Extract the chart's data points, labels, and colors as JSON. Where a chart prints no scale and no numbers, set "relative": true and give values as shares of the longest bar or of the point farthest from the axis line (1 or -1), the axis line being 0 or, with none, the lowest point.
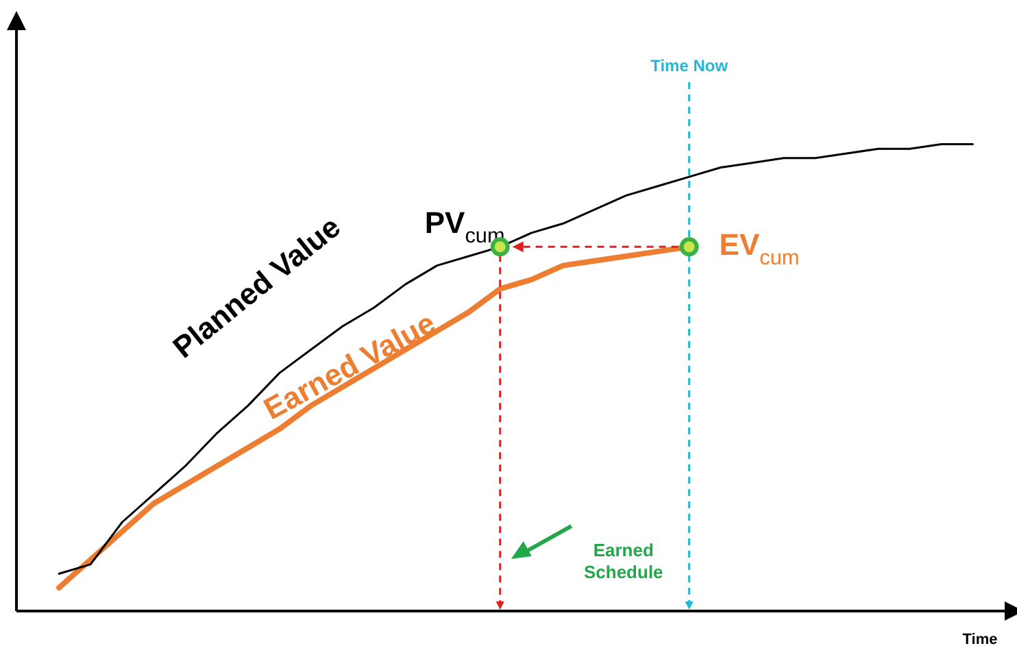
{
  "chart_data": {
    "type": "line",
    "relative": true,
    "xlabel": "Time",
    "legend": false,
    "marker": "none",
    "line_style": "solid",
    "categories": [
      null,
      null,
      null,
      null,
      null,
      null,
      null,
      null,
      null,
      null,
      null,
      null,
      null,
      null,
      null,
      null,
      null,
      null,
      null,
      null,
      null,
      null,
      null,
      null,
      null,
      null,
      null,
      null,
      null,
      null,
      null
    ],
    "series": [
      {
        "name": "Planned Value",
        "color": "#000000",
        "values": [
          null,
          0.08,
          0.1,
          0.19,
          0.25,
          0.31,
          0.38,
          0.44,
          0.51,
          0.56,
          0.61,
          0.65,
          0.7,
          0.74,
          0.76,
          0.78,
          0.81,
          0.83,
          0.86,
          0.89,
          0.91,
          0.93,
          0.95,
          0.96,
          0.97,
          0.97,
          0.98,
          0.99,
          0.99,
          1,
          1
        ]
      },
      {
        "name": "Earned Value",
        "color": "#ed7d31",
        "values": [
          null,
          0.05,
          0.11,
          0.17,
          0.23,
          0.27,
          0.31,
          0.35,
          0.39,
          0.44,
          0.48,
          0.52,
          0.56,
          0.6,
          0.64,
          0.69,
          0.71,
          0.74,
          0.75,
          0.76,
          0.77,
          0.78,
          null,
          null,
          null,
          null,
          null,
          null,
          null,
          null,
          null
        ]
      }
    ],
    "annotations": [
      "PV$_{cum}$",
      "EV$_{cum}$",
      "Earned Schedule",
      "Time Now"
    ]
  }
}
